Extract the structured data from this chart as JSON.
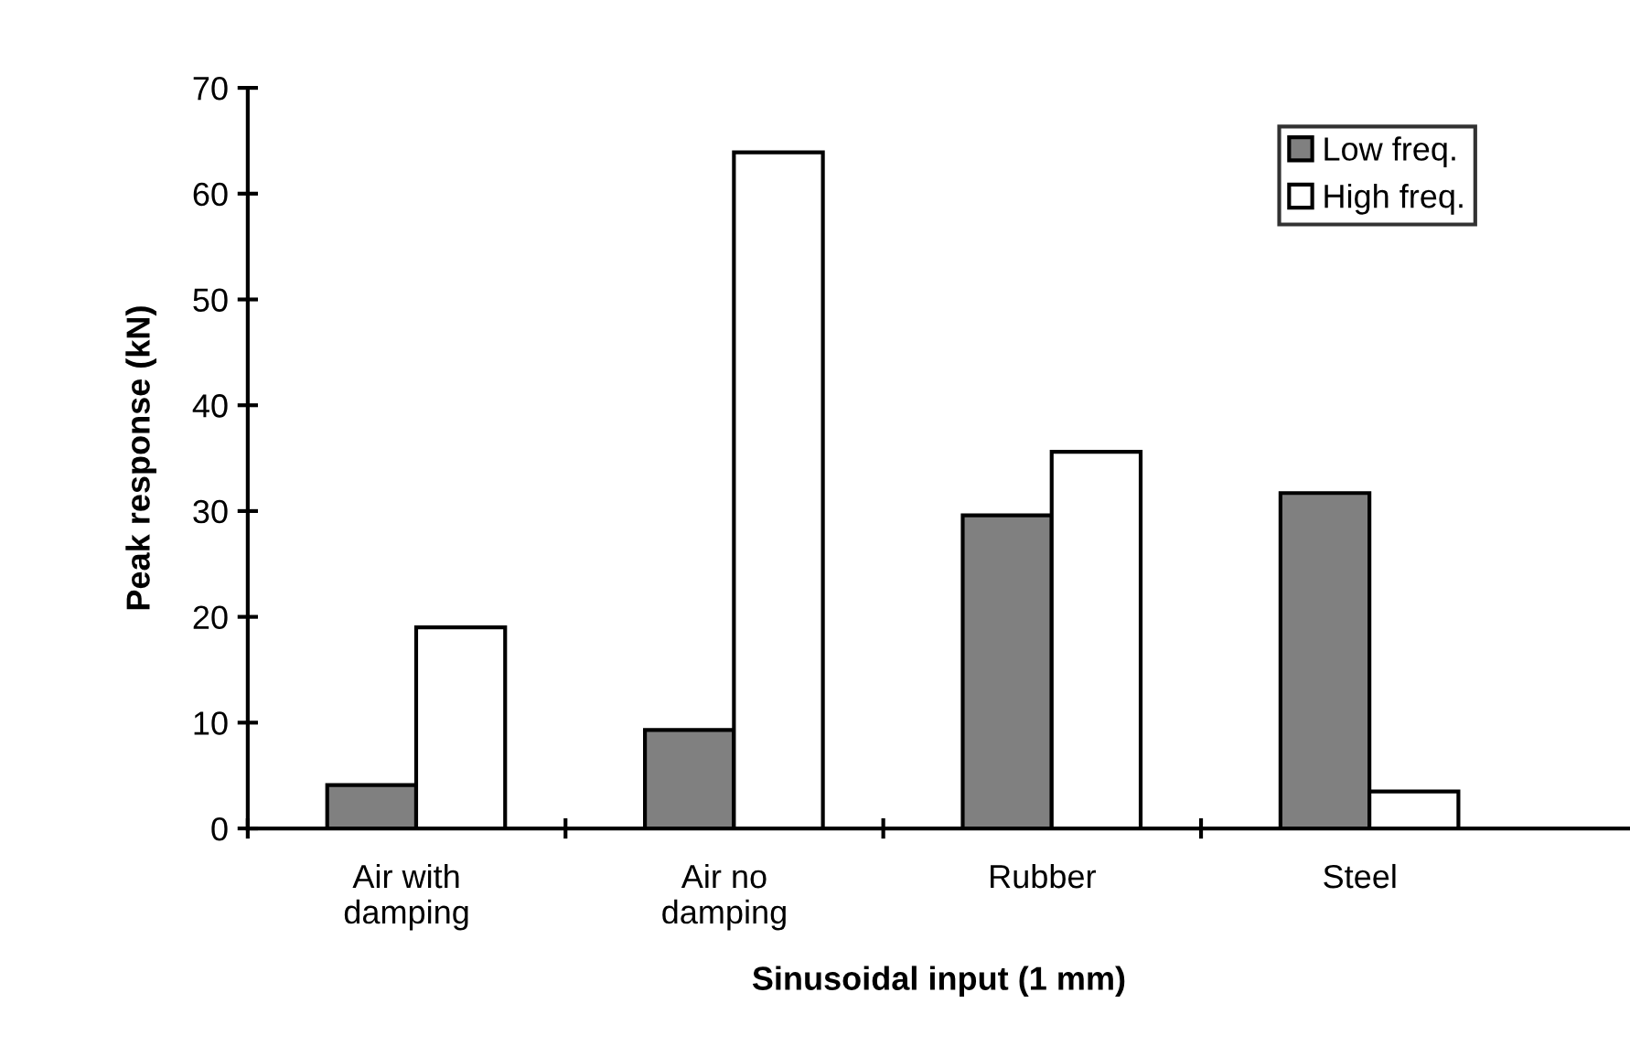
{
  "chart_data": {
    "type": "bar",
    "xlabel": "Sinusoidal input (1 mm)",
    "ylabel": "Peak response (kN)",
    "categories": [
      "Air with\ndamping",
      "Air no\ndamping",
      "Rubber",
      "Steel"
    ],
    "series": [
      {
        "name": "Low freq.",
        "color": "#808080",
        "values": [
          4.1,
          9.3,
          29.6,
          31.7
        ]
      },
      {
        "name": "High freq.",
        "color": "#ffffff",
        "values": [
          19.0,
          63.9,
          35.6,
          3.5
        ]
      }
    ],
    "ylim": [
      0,
      70
    ],
    "yticks": [
      0,
      10,
      20,
      30,
      40,
      50,
      60,
      70
    ],
    "grid": false,
    "legend": "top right"
  }
}
